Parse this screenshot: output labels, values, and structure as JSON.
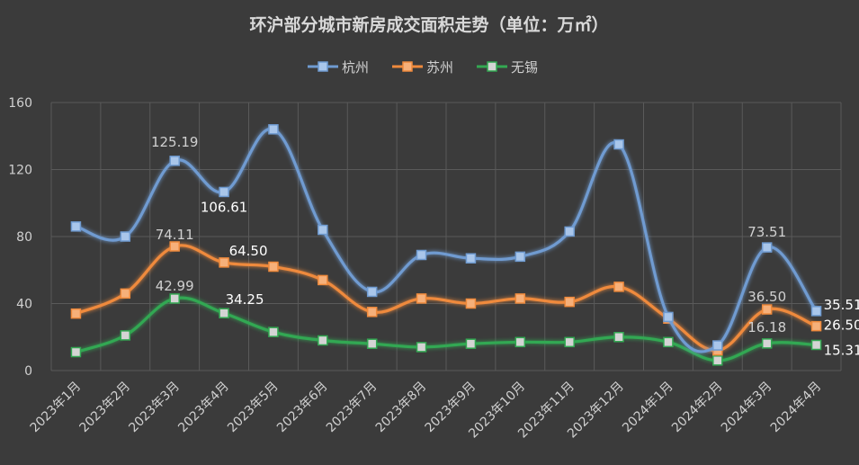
{
  "chart_data": {
    "type": "line",
    "title": "环沪部分城市新房成交面积走势（单位：万㎡）",
    "categories": [
      "2023年1月",
      "2023年2月",
      "2023年3月",
      "2023年4月",
      "2023年5月",
      "2023年6月",
      "2023年7月",
      "2023年8月",
      "2023年9月",
      "2023年10月",
      "2023年11月",
      "2023年12月",
      "2024年1月",
      "2024年2月",
      "2024年3月",
      "2024年4月"
    ],
    "ylim": [
      0,
      160
    ],
    "yticks": [
      "0",
      "40",
      "80",
      "120",
      "160"
    ],
    "grid": true,
    "legend_position": "top",
    "series": [
      {
        "name": "杭州",
        "color": "#6f9bd1",
        "marker": "#a9c6ea",
        "values": [
          86,
          80,
          125.19,
          106.61,
          144,
          84,
          47,
          69,
          67,
          68,
          83,
          135,
          32,
          15,
          73.51,
          35.51
        ],
        "labels": [
          {
            "index": 2,
            "text": "125.19"
          },
          {
            "index": 3,
            "text": "106.61"
          },
          {
            "index": 14,
            "text": "73.51"
          },
          {
            "index": 15,
            "text": "35.51"
          }
        ]
      },
      {
        "name": "苏州",
        "color": "#ef8a3c",
        "marker": "#f6b07a",
        "values": [
          34,
          46,
          74.11,
          64.5,
          62,
          54,
          35,
          43,
          40,
          43,
          41,
          50,
          31,
          12,
          36.5,
          26.5
        ],
        "labels": [
          {
            "index": 2,
            "text": "74.11"
          },
          {
            "index": 3,
            "text": "64.50"
          },
          {
            "index": 14,
            "text": "36.50"
          },
          {
            "index": 15,
            "text": "26.50"
          }
        ]
      },
      {
        "name": "无锡",
        "color": "#33a852",
        "marker": "#d4d4d4",
        "values": [
          11,
          21,
          42.99,
          34.25,
          23,
          18,
          16,
          14,
          16,
          17,
          17,
          20,
          17,
          6,
          16.18,
          15.31
        ],
        "labels": [
          {
            "index": 2,
            "text": "42.99"
          },
          {
            "index": 3,
            "text": "34.25"
          },
          {
            "index": 14,
            "text": "16.18"
          },
          {
            "index": 15,
            "text": "15.31"
          }
        ]
      }
    ]
  }
}
